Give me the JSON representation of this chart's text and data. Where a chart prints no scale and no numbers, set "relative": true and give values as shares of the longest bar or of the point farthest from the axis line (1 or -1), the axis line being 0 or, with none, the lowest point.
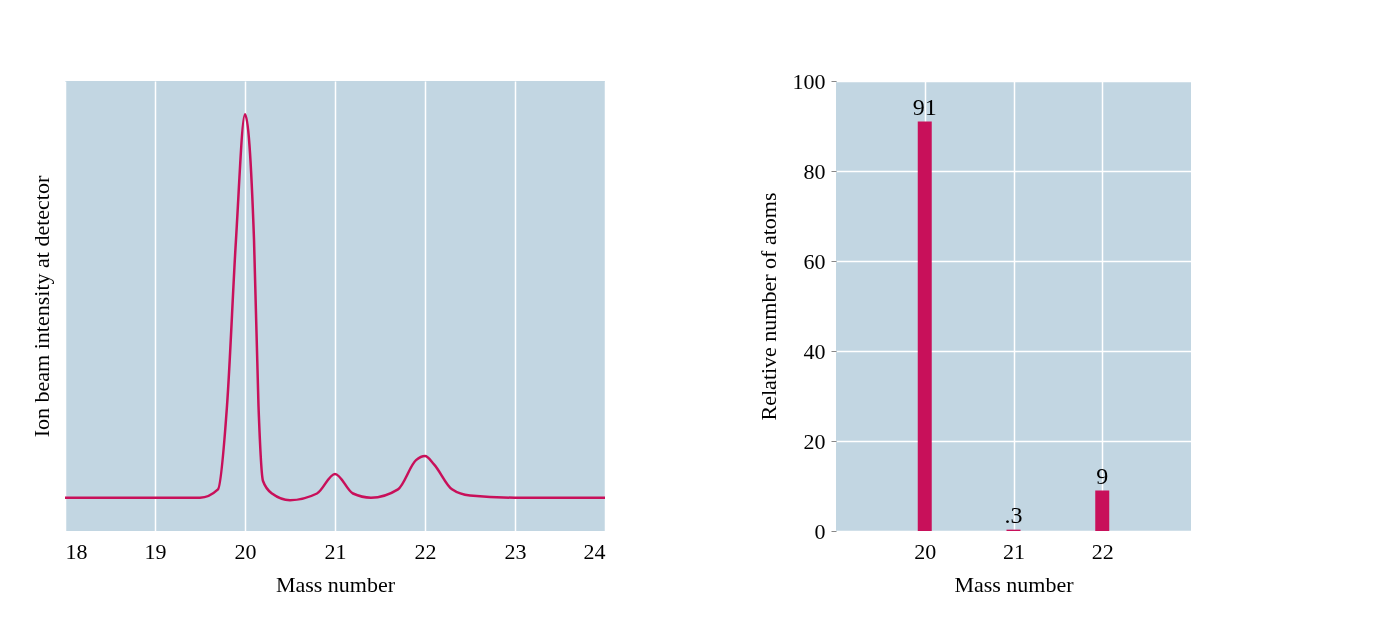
{
  "chart_data": [
    {
      "type": "line",
      "relative": true,
      "xlabel": "Mass number",
      "ylabel": "Ion beam intensity at detector",
      "x": [
        18,
        19.5,
        19.7,
        19.8,
        19.9,
        20,
        20.1,
        20.15,
        20.2,
        20.3,
        20.5,
        20.8,
        21,
        21.2,
        21.4,
        21.7,
        21.9,
        22,
        22.1,
        22.3,
        22.5,
        23,
        24
      ],
      "series": [
        {
          "color": "#c8105a",
          "values": [
            0.08,
            0.08,
            0.1,
            0.3,
            0.7,
            1.0,
            0.7,
            0.3,
            0.12,
            0.09,
            0.074,
            0.09,
            0.137,
            0.09,
            0.08,
            0.1,
            0.17,
            0.18,
            0.16,
            0.1,
            0.085,
            0.08,
            0.08
          ]
        }
      ],
      "xlim": [
        18,
        24
      ],
      "xticks": [
        18,
        19,
        20,
        21,
        22,
        23,
        24
      ],
      "grid": "x",
      "tick_labels": "x"
    },
    {
      "type": "bar",
      "xlabel": "Mass number",
      "ylabel": "Relative number of atoms",
      "x": [
        20,
        21,
        22
      ],
      "series": [
        {
          "color": "#c8105a",
          "values": [
            91,
            0.3,
            9
          ]
        }
      ],
      "value_labels": [
        "91",
        ".3",
        "9"
      ],
      "xlim": [
        19,
        23
      ],
      "xticks": [
        20,
        21,
        22
      ],
      "ylim": [
        0,
        100
      ],
      "yticks": [
        0,
        20,
        40,
        60,
        80,
        100
      ],
      "grid": true
    }
  ]
}
